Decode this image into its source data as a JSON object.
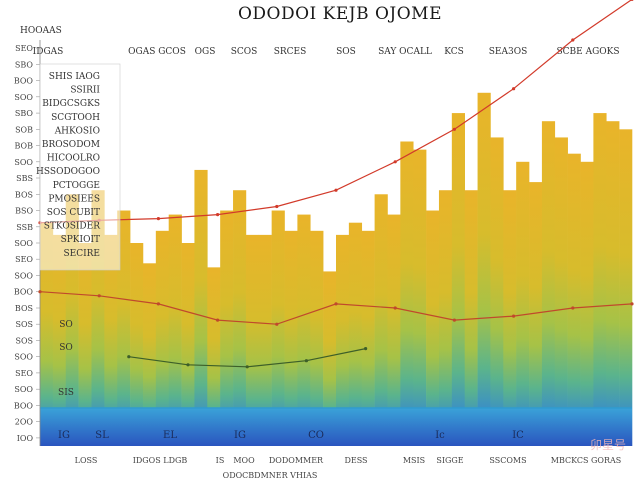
{
  "chart_data": {
    "type": "bar",
    "title": "ODODOI KEJB OJOME",
    "corner_label": "HOOAAS",
    "top_header_labels": [
      "IDGAS",
      "OGAS GCOS",
      "OGS",
      "SCOS",
      "SRCES",
      "SOS",
      "SAY OCALL",
      "KCS",
      "SEA3OS",
      "SCBE AGOKS"
    ],
    "bottom_labels": [
      "LOSS",
      "IDGOS LDGB",
      "IS",
      "MOO",
      "DODOMMER",
      "DESS",
      "MSIS",
      "SIGGE",
      "SSCOMS",
      "MBCKCS GORAS"
    ],
    "footer_text": "ODOCBDMNER VHIAS",
    "watermark": "卯星号",
    "ylim": [
      0,
      100
    ],
    "y_ticks": [
      2,
      6,
      10,
      14,
      18,
      22,
      26,
      30,
      34,
      38,
      42,
      46,
      50,
      54,
      58,
      62,
      66,
      70,
      74,
      78,
      82,
      86,
      90,
      94,
      98
    ],
    "y_tick_labels": [
      "IOO",
      "2OO",
      "BOO",
      "SOO",
      "SEO",
      "SOO",
      "SOS",
      "SOS",
      "BOS",
      "BOO",
      "SOO",
      "SEO",
      "SOO",
      "SSB",
      "BSO",
      "BOS",
      "SBS",
      "SOO",
      "BOB",
      "SOB",
      "SBO",
      "SOO",
      "BOO",
      "SBO",
      "SEO"
    ],
    "legend_entries": [
      "SHIS IAOG",
      "SSIRII",
      "BIDGCSGKS",
      "SCGTOOH",
      "AHKOSIO",
      "BROSODOM",
      "HICOOLRO",
      "HSSODOGOO",
      "PCTOGGE",
      "PMOSIEES",
      "SOS CUBIT",
      "STKOSIDER",
      "SPKIOIT",
      "SECIRE"
    ],
    "bars": [
      55,
      52,
      62,
      50,
      63,
      52,
      58,
      50,
      45,
      53,
      57,
      50,
      68,
      44,
      58,
      63,
      52,
      52,
      58,
      53,
      57,
      53,
      43,
      52,
      55,
      53,
      62,
      57,
      75,
      73,
      58,
      63,
      82,
      63,
      87,
      76,
      63,
      70,
      65,
      80,
      76,
      72,
      70,
      82,
      80,
      78
    ],
    "series": [
      {
        "type": "line",
        "color": "#d23a2a",
        "x": [
          0,
          10,
          20,
          30,
          40,
          50,
          60,
          70,
          80,
          90,
          100
        ],
        "values": [
          55,
          55.6,
          56,
          57,
          59,
          63,
          70,
          78,
          88,
          100,
          110
        ]
      },
      {
        "type": "line",
        "color": "#c0492c",
        "x": [
          0,
          10,
          20,
          30,
          40,
          50,
          60,
          70,
          80,
          90,
          100
        ],
        "values": [
          38,
          37,
          35,
          31,
          30,
          35,
          34,
          31,
          32,
          34,
          35
        ]
      },
      {
        "type": "line",
        "color": "#3d5f29",
        "x": [
          15,
          25,
          35,
          45,
          55
        ],
        "values": [
          22,
          20,
          19.5,
          21,
          24
        ]
      }
    ],
    "mid_labels": [
      "SO",
      "SO",
      "SIS"
    ],
    "bottom_inner_labels": [
      "IG",
      "SL",
      "EL",
      "IG",
      "CO",
      "Ic",
      "IC"
    ],
    "grid": false
  }
}
